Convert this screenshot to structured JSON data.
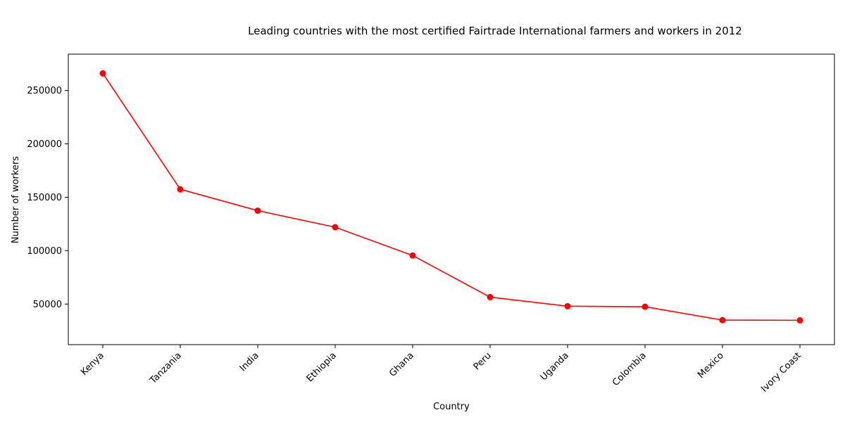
{
  "chart_data": {
    "type": "line",
    "title": "Leading countries with the most certified Fairtrade International farmers and workers in 2012",
    "xlabel": "Country",
    "ylabel": "Number of workers",
    "categories": [
      "Kenya",
      "Tanzania",
      "India",
      "Ethiopia",
      "Ghana",
      "Peru",
      "Uganda",
      "Colombia",
      "Mexico",
      "Ivory Coast"
    ],
    "series": [
      {
        "values": [
          266000,
          157500,
          137500,
          122000,
          95500,
          56500,
          48000,
          47500,
          35000,
          34800
        ]
      }
    ],
    "ylim": [
      12000,
      284000
    ],
    "yticks": [
      50000,
      100000,
      150000,
      200000,
      250000
    ],
    "grid": false,
    "line_color": "#ff0000",
    "marker_color": "#ff0000"
  }
}
